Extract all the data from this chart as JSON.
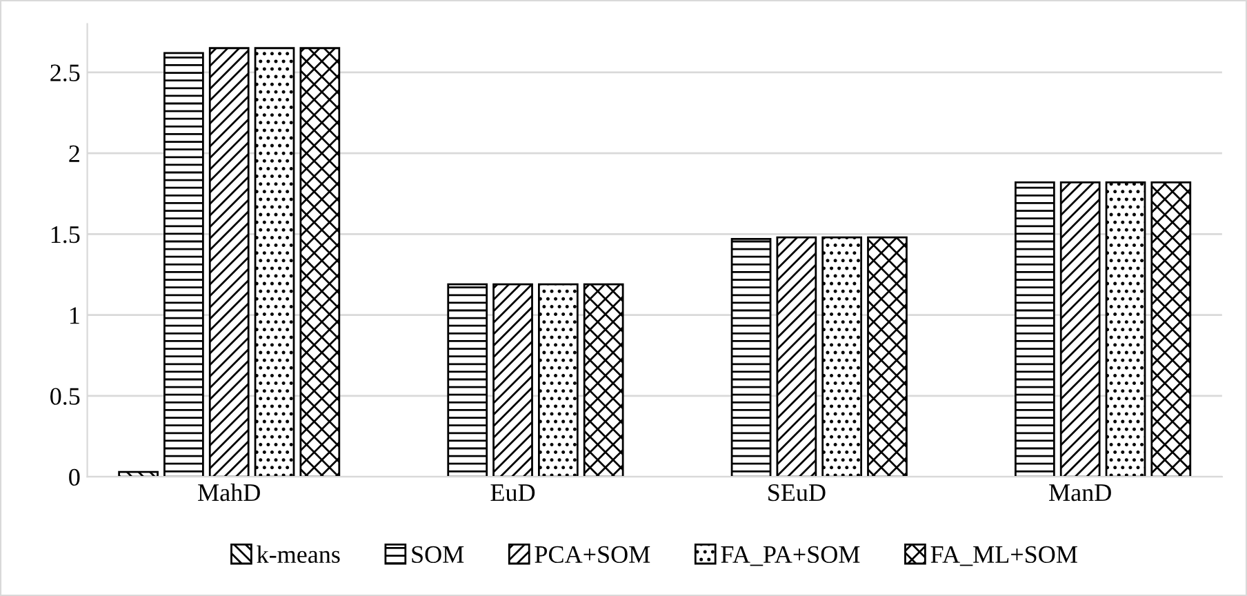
{
  "chart_data": {
    "type": "bar",
    "categories": [
      "MahD",
      "EuD",
      "SEuD",
      "ManD"
    ],
    "series": [
      {
        "name": "k-means",
        "color": "#000000",
        "values": [
          0.03,
          null,
          null,
          null
        ]
      },
      {
        "name": "SOM",
        "color": "#000000",
        "values": [
          2.62,
          1.19,
          1.47,
          1.82
        ]
      },
      {
        "name": "PCA+SOM",
        "color": "#000000",
        "values": [
          2.65,
          1.19,
          1.48,
          1.82
        ]
      },
      {
        "name": "FA_PA+SOM",
        "color": "#000000",
        "values": [
          2.65,
          1.19,
          1.48,
          1.82
        ]
      },
      {
        "name": "FA_ML+SOM",
        "color": "#000000",
        "values": [
          2.65,
          1.19,
          1.48,
          1.82
        ]
      }
    ],
    "ylim": [
      0,
      2.8
    ],
    "yticks": [
      0,
      0.5,
      1,
      1.5,
      2,
      2.5
    ],
    "grid": "y",
    "legend": "bottom"
  }
}
